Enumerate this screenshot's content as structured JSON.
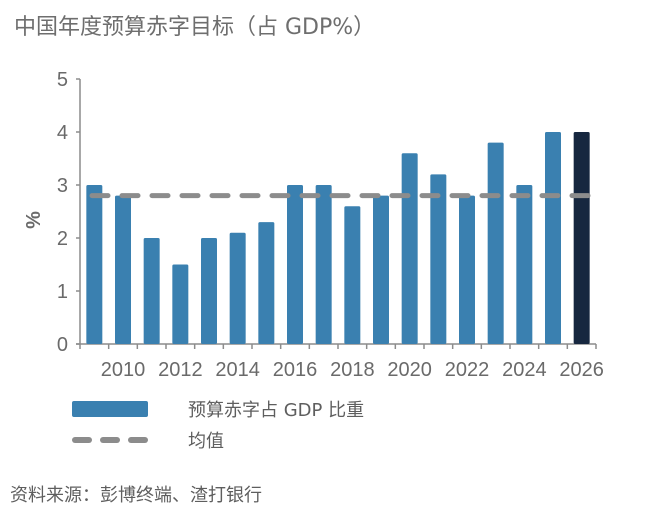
{
  "chart_data": {
    "type": "bar",
    "title": "中国年度预算赤字目标（占 GDP%）",
    "xlabel": "",
    "ylabel": "%",
    "ylim": [
      0,
      5
    ],
    "yticks": [
      "0",
      "1",
      "2",
      "3",
      "4",
      "5"
    ],
    "categories": [
      "2009",
      "2010",
      "2011",
      "2012",
      "2013",
      "2014",
      "2015",
      "2016",
      "2017",
      "2018",
      "2019",
      "2020",
      "2021",
      "2022",
      "2023",
      "2024",
      "2025",
      "2026"
    ],
    "xtick_labels": [
      "2010",
      "2012",
      "2014",
      "2016",
      "2018",
      "2020",
      "2022",
      "2024",
      "2026"
    ],
    "series": [
      {
        "name": "预算赤字占 GDP 比重",
        "type": "bar",
        "values": [
          3.0,
          2.8,
          2.0,
          1.5,
          2.0,
          2.1,
          2.3,
          3.0,
          3.0,
          2.6,
          2.8,
          3.6,
          3.2,
          2.8,
          3.8,
          3.0,
          4.0,
          4.0
        ],
        "color": "#3a80b0",
        "highlight_color": "#16273f",
        "highlight_category": "2026"
      },
      {
        "name": "均值",
        "type": "dashed-line",
        "value": 2.8,
        "color": "#8c8c8c"
      }
    ],
    "legend_position": "bottom-left",
    "grid": false
  },
  "legend": {
    "bar_label": "预算赤字占 GDP 比重",
    "line_label": "均值"
  },
  "source": "资料来源：彭博终端、渣打银行"
}
